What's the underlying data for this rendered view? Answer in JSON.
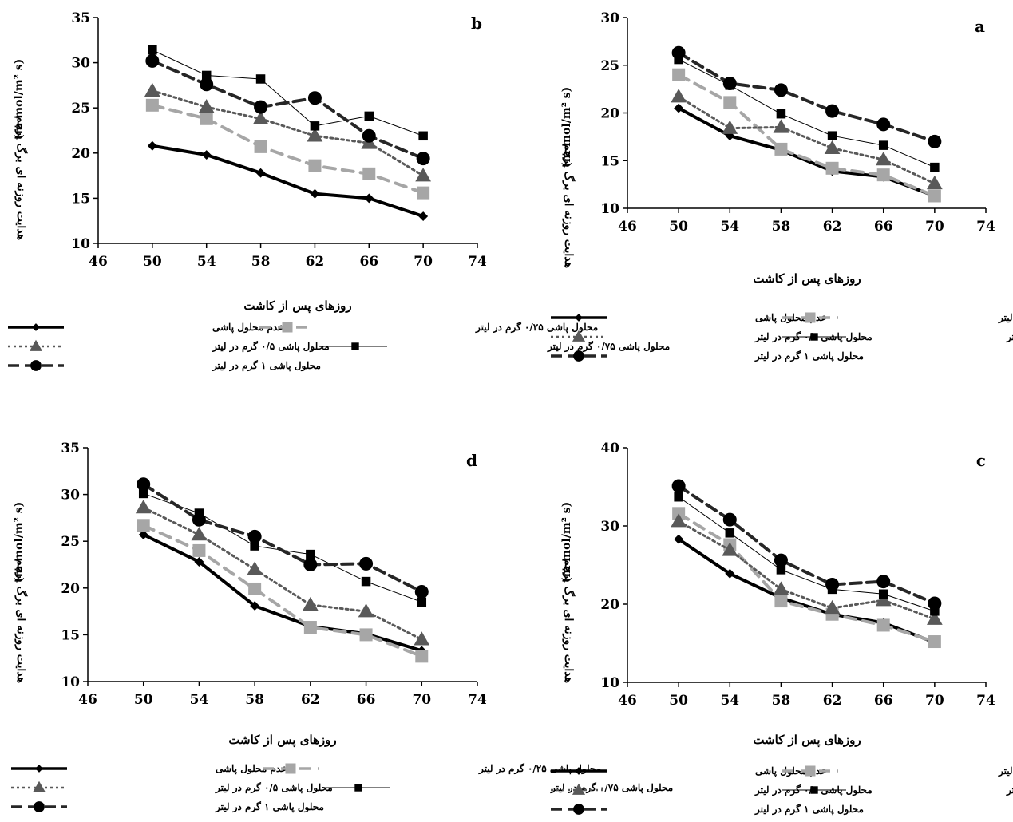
{
  "chart_data": [
    {
      "panel_label": "b",
      "type": "line",
      "x": [
        50,
        54,
        58,
        62,
        66,
        70
      ],
      "xlim": [
        46,
        74
      ],
      "xticks": [
        46,
        50,
        54,
        58,
        62,
        66,
        70,
        74
      ],
      "ylim": [
        10,
        35
      ],
      "yticks": [
        10,
        15,
        20,
        25,
        30,
        35
      ],
      "xlabel": "روزهای پس از کاشت",
      "ylabel_fa": "هدایت روزنه ای برگ پرچم",
      "ylabel_unit": "(m mol/m² s)",
      "series": [
        {
          "name": "عدم محلول پاشی",
          "values": [
            20.8,
            19.8,
            17.8,
            15.5,
            15.0,
            13.0
          ]
        },
        {
          "name": "محلول پاشی ۰/۲۵ گرم در لیتر",
          "values": [
            25.3,
            23.8,
            20.7,
            18.6,
            17.7,
            15.6
          ]
        },
        {
          "name": "محلول پاشی ۰/۵ گرم در لیتر",
          "values": [
            26.9,
            25.1,
            23.8,
            21.9,
            21.1,
            17.5
          ]
        },
        {
          "name": "محلول پاشی ۰/۷۵ گرم در لیتر",
          "values": [
            31.4,
            28.6,
            28.2,
            23.0,
            24.1,
            21.9
          ]
        },
        {
          "name": "محلول پاشی ۱ گرم در لیتر",
          "values": [
            30.2,
            27.6,
            25.1,
            26.1,
            21.9,
            19.4
          ]
        }
      ]
    },
    {
      "panel_label": "a",
      "type": "line",
      "x": [
        50,
        54,
        58,
        62,
        66,
        70
      ],
      "xlim": [
        46,
        74
      ],
      "xticks": [
        46,
        50,
        54,
        58,
        62,
        66,
        70,
        74
      ],
      "ylim": [
        10,
        30
      ],
      "yticks": [
        10,
        15,
        20,
        25,
        30
      ],
      "xlabel": "روزهای پس از کاشت",
      "ylabel_fa": "هدایت روزنه ای برگ پرچم",
      "ylabel_unit": "(m mol/m² s)",
      "series": [
        {
          "name": "عدم محلول پاشی",
          "values": [
            20.5,
            17.6,
            16.1,
            13.9,
            13.3,
            11.3
          ]
        },
        {
          "name": "محلول پاشی ۰/۲۵ گرم در لیتر",
          "values": [
            24.0,
            21.1,
            16.2,
            14.2,
            13.5,
            11.3
          ]
        },
        {
          "name": "محلول پاشی ۰/۵ گرم در لیتر",
          "values": [
            21.7,
            18.4,
            18.5,
            16.3,
            15.1,
            12.6
          ]
        },
        {
          "name": "محلول پاشی ۰/۷۵ گرم در لیتر",
          "values": [
            25.6,
            22.9,
            19.9,
            17.6,
            16.6,
            14.3
          ]
        },
        {
          "name": "محلول پاشی ۱ گرم در لیتر",
          "values": [
            26.3,
            23.1,
            22.4,
            20.2,
            18.8,
            17.0
          ]
        }
      ]
    },
    {
      "panel_label": "d",
      "type": "line",
      "x": [
        50,
        54,
        58,
        62,
        66,
        70
      ],
      "xlim": [
        46,
        74
      ],
      "xticks": [
        46,
        50,
        54,
        58,
        62,
        66,
        70,
        74
      ],
      "ylim": [
        10,
        35
      ],
      "yticks": [
        10,
        15,
        20,
        25,
        30,
        35
      ],
      "xlabel": "روزهای پس از کاشت",
      "ylabel_fa": "هدایت روزنه ای برگ پرچم",
      "ylabel_unit": "(m mol/m² s)",
      "series": [
        {
          "name": "عدم محلول پاشی",
          "values": [
            25.7,
            22.8,
            18.1,
            15.9,
            15.1,
            13.3
          ]
        },
        {
          "name": "محلول پاشی ۰/۲۵ گرم در لیتر",
          "values": [
            26.7,
            24.0,
            19.9,
            15.8,
            15.0,
            12.7
          ]
        },
        {
          "name": "محلول پاشی ۰/۵ گرم در لیتر",
          "values": [
            28.6,
            25.7,
            22.0,
            18.2,
            17.5,
            14.5
          ]
        },
        {
          "name": "محلول پاشی ۰/۷۵ گرم در لیتر",
          "values": [
            30.1,
            28.0,
            24.5,
            23.6,
            20.7,
            18.5
          ]
        },
        {
          "name": "محلول پاشی ۱ گرم در لیتر",
          "values": [
            31.1,
            27.3,
            25.5,
            22.5,
            22.6,
            19.6
          ]
        }
      ]
    },
    {
      "panel_label": "c",
      "type": "line",
      "x": [
        50,
        54,
        58,
        62,
        66,
        70
      ],
      "xlim": [
        46,
        74
      ],
      "xticks": [
        46,
        50,
        54,
        58,
        62,
        66,
        70,
        74
      ],
      "ylim": [
        10,
        40
      ],
      "yticks": [
        10,
        20,
        30,
        40
      ],
      "xlabel": "روزهای پس از کاشت",
      "ylabel_fa": "هدایت روزنه ای برگ پرچم",
      "ylabel_unit": "(m mol/m² s)",
      "series": [
        {
          "name": "عدم محلول پاشی",
          "values": [
            28.3,
            23.9,
            20.8,
            18.7,
            17.6,
            15.1
          ]
        },
        {
          "name": "محلول پاشی ۰/۲۵ گرم در لیتر",
          "values": [
            31.6,
            27.6,
            20.4,
            18.7,
            17.3,
            15.2
          ]
        },
        {
          "name": "محلول پاشی ۰/۵ گرم در لیتر",
          "values": [
            30.6,
            26.9,
            21.9,
            19.5,
            20.5,
            18.1
          ]
        },
        {
          "name": "محلول پاشی ۰/۷۵ گرم در لیتر",
          "values": [
            33.7,
            29.1,
            24.4,
            21.9,
            21.3,
            19.1
          ]
        },
        {
          "name": "محلول پاشی ۱ گرم در لیتر",
          "values": [
            35.1,
            30.8,
            25.6,
            22.5,
            22.9,
            20.1
          ]
        }
      ]
    }
  ],
  "styles": [
    {
      "line": "#000000",
      "width": 4,
      "dash": "",
      "marker": "diamond",
      "fill": "#000000",
      "legend_marker_fill": "#000000"
    },
    {
      "line": "#a6a6a6",
      "width": 4,
      "dash": "14,9",
      "marker": "square",
      "fill": "#a6a6a6",
      "legend_marker_fill": "#a6a6a6"
    },
    {
      "line": "#595959",
      "width": 3,
      "dash": "3,4",
      "marker": "triangle",
      "fill": "#595959",
      "legend_marker_fill": "#595959"
    },
    {
      "line": "#000000",
      "width": 1,
      "dash": "",
      "marker": "square",
      "fill": "#000000",
      "legend_marker_fill": "#000000"
    },
    {
      "line": "#262626",
      "width": 4,
      "dash": "14,7",
      "marker": "circle",
      "fill": "#000000",
      "legend_marker_fill": "#000000"
    }
  ]
}
